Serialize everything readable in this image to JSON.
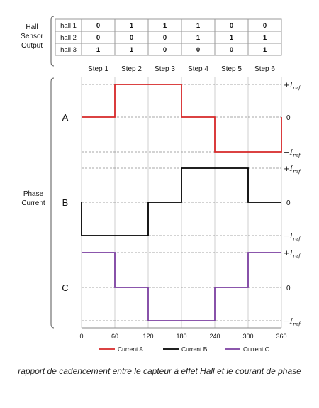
{
  "hall_table": {
    "group_label": [
      "Hall",
      "Sensor",
      "Output"
    ],
    "rows": [
      {
        "label": "hall 1",
        "values": [
          "0",
          "1",
          "1",
          "1",
          "0",
          "0"
        ]
      },
      {
        "label": "hall 2",
        "values": [
          "0",
          "0",
          "0",
          "1",
          "1",
          "1"
        ]
      },
      {
        "label": "hall 3",
        "values": [
          "1",
          "1",
          "0",
          "0",
          "0",
          "1"
        ]
      }
    ],
    "steps": [
      "Step 1",
      "Step 2",
      "Step 3",
      "Step 4",
      "Step 5",
      "Step 6"
    ]
  },
  "chart_data": {
    "type": "line",
    "group_label": [
      "Phase",
      "Current"
    ],
    "xlim": [
      0,
      360
    ],
    "x_ticks": [
      "0",
      "60",
      "120",
      "180",
      "240",
      "300",
      "360"
    ],
    "level_labels": {
      "pos": "+I",
      "zero": "0",
      "neg": "−I",
      "sub": "ref"
    },
    "series": [
      {
        "name": "A",
        "legend": "Current A",
        "color": "#d62728",
        "x": [
          0,
          60,
          60,
          180,
          180,
          240,
          240,
          360,
          360
        ],
        "y": [
          0,
          0,
          1,
          1,
          0,
          0,
          -1,
          -1,
          0
        ]
      },
      {
        "name": "B",
        "legend": "Current B",
        "color": "#000000",
        "x": [
          0,
          0,
          120,
          120,
          180,
          180,
          300,
          300,
          360
        ],
        "y": [
          0,
          -1,
          -1,
          0,
          0,
          1,
          1,
          0,
          0
        ]
      },
      {
        "name": "C",
        "legend": "Current C",
        "color": "#7b3fa0",
        "x": [
          0,
          60,
          60,
          120,
          120,
          240,
          240,
          300,
          300,
          360
        ],
        "y": [
          1,
          1,
          0,
          0,
          -1,
          -1,
          0,
          0,
          1,
          1
        ]
      }
    ]
  },
  "caption": "rapport de cadencement entre le capteur à effet Hall et le courant de phase"
}
